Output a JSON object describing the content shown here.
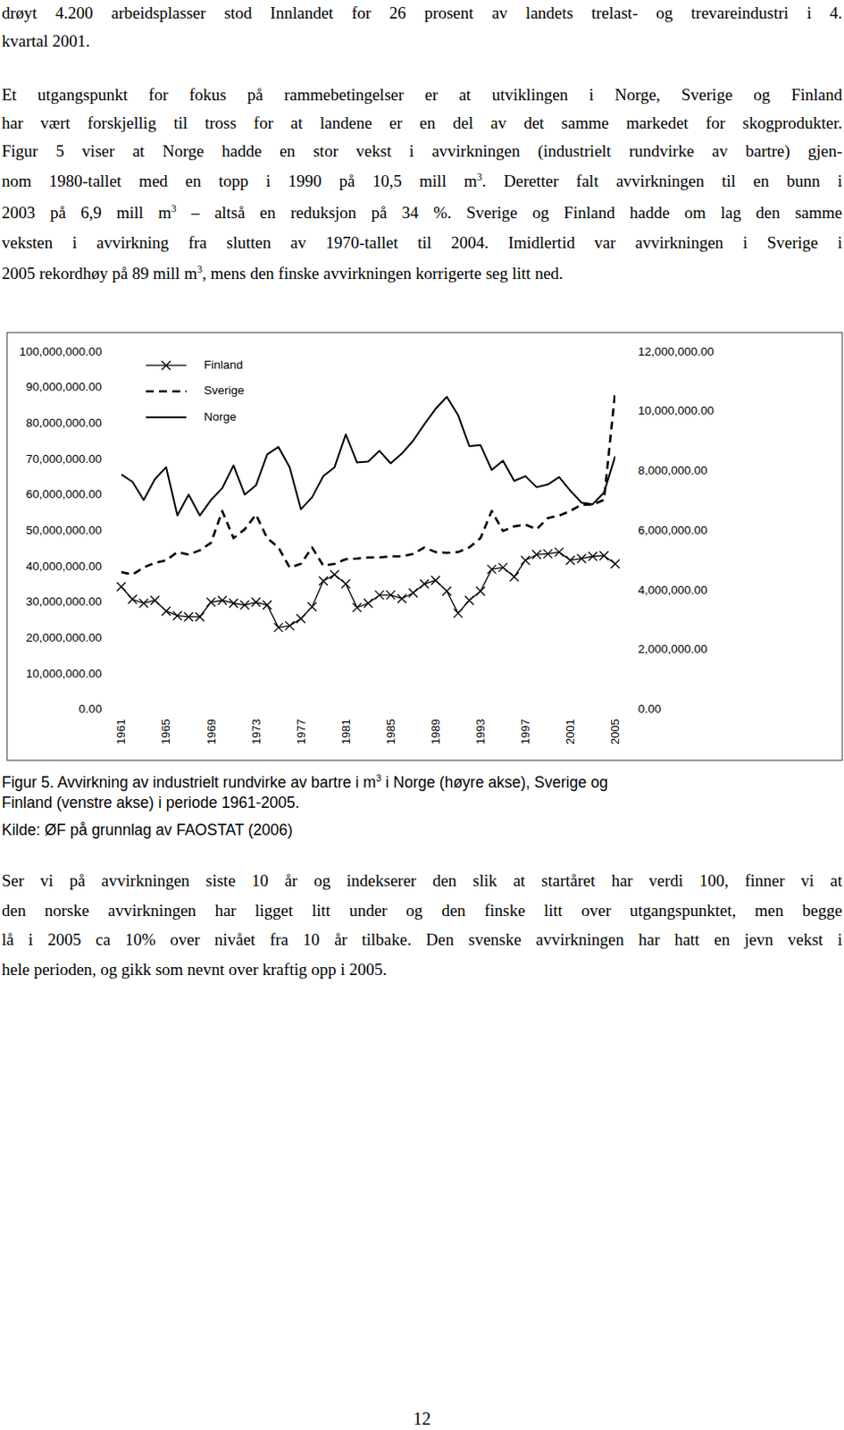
{
  "paragraphs_top": [
    [
      [
        "drøyt 4.200 arbeidsplasser stod Innlandet for 26 prosent av landets trelast- og trevareindustri i 4."
      ],
      [
        "kvartal 2001."
      ]
    ],
    [
      [
        "Et utgangspunkt for fokus på rammebetingelser er at utviklingen i Norge, Sverige og Finland"
      ],
      [
        "har vært forskjellig til tross for at landene er en del av det samme markedet for skogprodukter."
      ],
      [
        "Figur 5 viser at Norge hadde en stor vekst i avvirkningen (industrielt rundvirke av bartre) gjen-"
      ],
      [
        "nom 1980-tallet med en topp i 1990 på 10,5 mill m",
        {
          "sup": "3"
        },
        ". Deretter falt avvirkningen til en bunn i"
      ],
      [
        "2003 på 6,9 mill m",
        {
          "sup": "3"
        },
        " – altså en reduksjon på 34 %. Sverige og Finland hadde om lag den samme"
      ],
      [
        "veksten i avvirkning fra slutten av 1970-tallet til 2004. Imidlertid var avvirkningen i Sverige i"
      ],
      [
        "2005 rekordhøy på 89 mill m",
        {
          "sup": "3"
        },
        ", mens den finske avvirkningen korrigerte seg litt ned."
      ]
    ]
  ],
  "chart_data": {
    "type": "line",
    "x": [
      1961,
      1962,
      1963,
      1964,
      1965,
      1966,
      1967,
      1968,
      1969,
      1970,
      1971,
      1972,
      1973,
      1974,
      1975,
      1976,
      1977,
      1978,
      1979,
      1980,
      1981,
      1982,
      1983,
      1984,
      1985,
      1986,
      1987,
      1988,
      1989,
      1990,
      1991,
      1992,
      1993,
      1994,
      1995,
      1996,
      1997,
      1998,
      1999,
      2000,
      2001,
      2002,
      2003,
      2004,
      2005
    ],
    "xlim": [
      1961,
      2005
    ],
    "xticks": [
      1961,
      1965,
      1969,
      1973,
      1977,
      1981,
      1985,
      1989,
      1993,
      1997,
      2001,
      2005
    ],
    "ylim": [
      0,
      100000000
    ],
    "yticks": [
      {
        "value": 0,
        "label": "0.00"
      },
      {
        "value": 10000000,
        "label": "10,000,000.00"
      },
      {
        "value": 20000000,
        "label": "20,000,000.00"
      },
      {
        "value": 30000000,
        "label": "30,000,000.00"
      },
      {
        "value": 40000000,
        "label": "40,000,000.00"
      },
      {
        "value": 50000000,
        "label": "50,000,000.00"
      },
      {
        "value": 60000000,
        "label": "60,000,000.00"
      },
      {
        "value": 70000000,
        "label": "70,000,000.00"
      },
      {
        "value": 80000000,
        "label": "80,000,000.00"
      },
      {
        "value": 90000000,
        "label": "90,000,000.00"
      },
      {
        "value": 100000000,
        "label": "100,000,000.00"
      }
    ],
    "y2lim": [
      0,
      12000000
    ],
    "y2ticks": [
      {
        "value": 0,
        "label": "0.00"
      },
      {
        "value": 2000000,
        "label": "2,000,000.00"
      },
      {
        "value": 4000000,
        "label": "4,000,000.00"
      },
      {
        "value": 6000000,
        "label": "6,000,000.00"
      },
      {
        "value": 8000000,
        "label": "8,000,000.00"
      },
      {
        "value": 10000000,
        "label": "10,000,000.00"
      },
      {
        "value": 12000000,
        "label": "12,000,000.00"
      }
    ],
    "grid": false,
    "legend": "upper left",
    "series": [
      {
        "name": "Finland",
        "color": "#000000",
        "line_style": "solid",
        "marker": "x",
        "values": [
          34400000,
          30900000,
          29800000,
          30600000,
          27600000,
          26300000,
          26000000,
          26000000,
          30100000,
          30600000,
          29800000,
          29300000,
          30100000,
          29300000,
          23000000,
          23500000,
          25500000,
          28800000,
          36000000,
          37800000,
          35200000,
          28600000,
          29800000,
          32100000,
          32100000,
          31100000,
          32700000,
          35200000,
          36200000,
          33200000,
          27000000,
          30600000,
          33200000,
          39300000,
          39800000,
          37200000,
          41800000,
          43400000,
          43600000,
          44100000,
          41800000,
          42300000,
          42900000,
          43100000,
          40800000
        ]
      },
      {
        "name": "Sverige",
        "color": "#000000",
        "line_style": "dashed",
        "marker": "none",
        "values": [
          38500000,
          37800000,
          39800000,
          41100000,
          41800000,
          44100000,
          43400000,
          44600000,
          46700000,
          55600000,
          48000000,
          50500000,
          54600000,
          48000000,
          45400000,
          39800000,
          40800000,
          45400000,
          40300000,
          40800000,
          42100000,
          42300000,
          42600000,
          42600000,
          42900000,
          42900000,
          43600000,
          45400000,
          44100000,
          43900000,
          44100000,
          45400000,
          48000000,
          55600000,
          50000000,
          51300000,
          51800000,
          50500000,
          53600000,
          54300000,
          55600000,
          57400000,
          57400000,
          58700000,
          89000000
        ]
      },
      {
        "name": "Norge",
        "color": "#000000",
        "line_style": "solid",
        "marker": "none",
        "axis": "y2",
        "values": [
          7900000,
          7650000,
          7040000,
          7740000,
          8140000,
          6520000,
          7220000,
          6520000,
          7040000,
          7440000,
          8200000,
          7220000,
          7530000,
          8570000,
          8820000,
          8140000,
          6730000,
          7130000,
          7840000,
          8140000,
          9240000,
          8300000,
          8330000,
          8690000,
          8270000,
          8600000,
          9030000,
          9580000,
          10100000,
          10500000,
          9890000,
          8850000,
          8880000,
          8050000,
          8360000,
          7680000,
          7840000,
          7470000,
          7560000,
          7810000,
          7350000,
          6950000,
          6900000,
          7290000,
          8510000
        ]
      }
    ]
  },
  "caption": [
    [
      "Figur 5. Avvirkning av industrielt rundvirke av bartre i m",
      {
        "sup": "3"
      },
      " i Norge (høyre akse), Sverige og"
    ],
    [
      "Finland (venstre akse) i periode 1961-2005."
    ]
  ],
  "source": "Kilde: ØF på grunnlag av FAOSTAT (2006)",
  "paragraphs_bottom": [
    [
      [
        "Ser vi på avvirkningen siste 10 år og indekserer den slik at startåret har verdi 100, finner vi at"
      ],
      [
        "den norske avvirkningen har ligget litt under og den finske litt over utgangspunktet, men begge"
      ],
      [
        "lå i 2005 ca 10% over nivået fra 10 år tilbake. Den svenske avvirkningen har hatt en jevn vekst i"
      ],
      [
        "hele perioden, og gikk som nevnt over kraftig opp i 2005."
      ]
    ]
  ],
  "page_number": "12"
}
